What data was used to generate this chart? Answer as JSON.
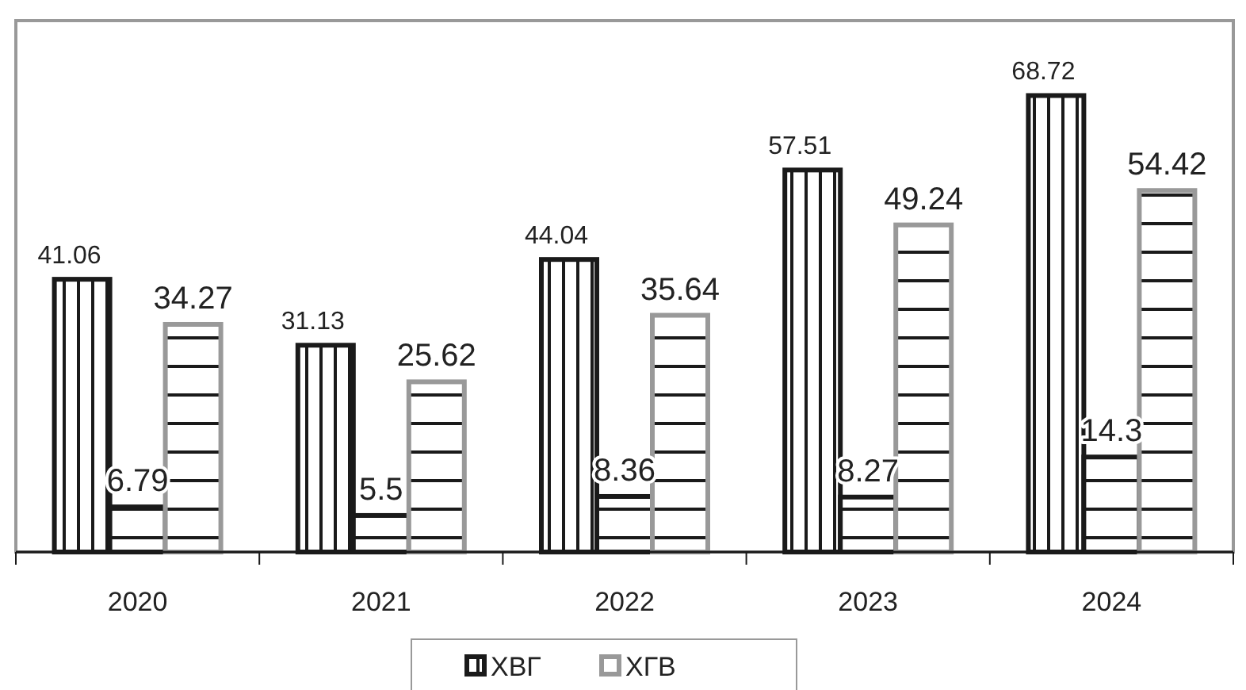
{
  "chart_data": {
    "type": "bar",
    "categories": [
      "2020",
      "2021",
      "2022",
      "2023",
      "2024"
    ],
    "series": [
      {
        "name": "ХВГ",
        "color": "#1a1a1a",
        "values": [
          41.06,
          31.13,
          44.04,
          57.51,
          68.72
        ]
      },
      {
        "color": "#1a1a1a",
        "values": [
          6.79,
          5.5,
          8.36,
          8.27,
          14.3
        ]
      },
      {
        "name": "ХГВ",
        "color": "#999999",
        "values": [
          34.27,
          25.62,
          35.64,
          49.24,
          54.42
        ]
      }
    ],
    "ylim": [
      0,
      80
    ],
    "tick_labels": "x",
    "data_labels": true,
    "legend": "bottom",
    "grid": false
  }
}
